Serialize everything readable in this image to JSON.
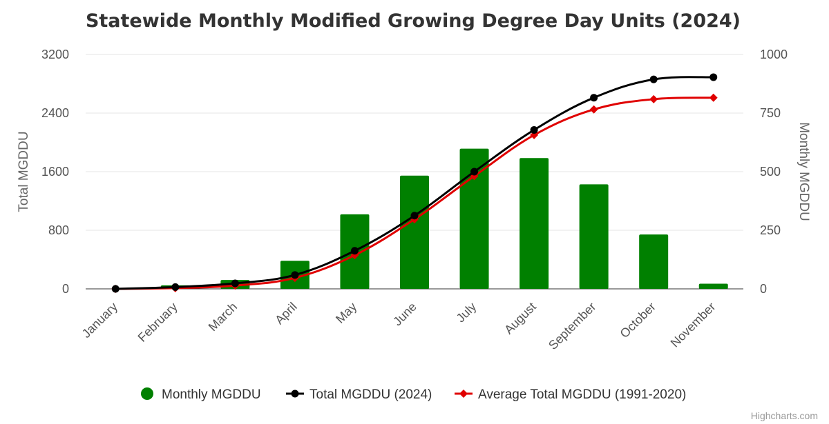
{
  "chart_data": {
    "type": "bar",
    "title": "Statewide Monthly Modified Growing Degree Day Units (2024)",
    "categories": [
      "January",
      "February",
      "March",
      "April",
      "May",
      "June",
      "July",
      "August",
      "September",
      "October",
      "November"
    ],
    "y_left": {
      "label": "Total MGDDU",
      "range": [
        0,
        3200
      ],
      "ticks": [
        0,
        800,
        1600,
        2400,
        3200
      ]
    },
    "y_right": {
      "label": "Monthly MGDDU",
      "range": [
        0,
        1000
      ],
      "ticks": [
        0,
        250,
        500,
        750,
        1000
      ]
    },
    "grid": true,
    "legend_position": "bottom-center",
    "series": [
      {
        "name": "Monthly MGDDU",
        "type": "bar",
        "axis": "right",
        "color": "#008000",
        "values": [
          0,
          15,
          38,
          120,
          318,
          483,
          598,
          558,
          446,
          232,
          22
        ]
      },
      {
        "name": "Total MGDDU (2024)",
        "type": "line",
        "axis": "left",
        "color": "#000000",
        "marker": "circle",
        "values": [
          0,
          25,
          75,
          190,
          520,
          1000,
          1600,
          2170,
          2610,
          2860,
          2890
        ]
      },
      {
        "name": "Average Total MGDDU (1991-2020)",
        "type": "line",
        "axis": "left",
        "color": "#e00000",
        "marker": "diamond",
        "values": [
          0,
          10,
          45,
          150,
          460,
          950,
          1540,
          2100,
          2450,
          2590,
          2610
        ]
      }
    ],
    "credits": "Highcharts.com"
  }
}
